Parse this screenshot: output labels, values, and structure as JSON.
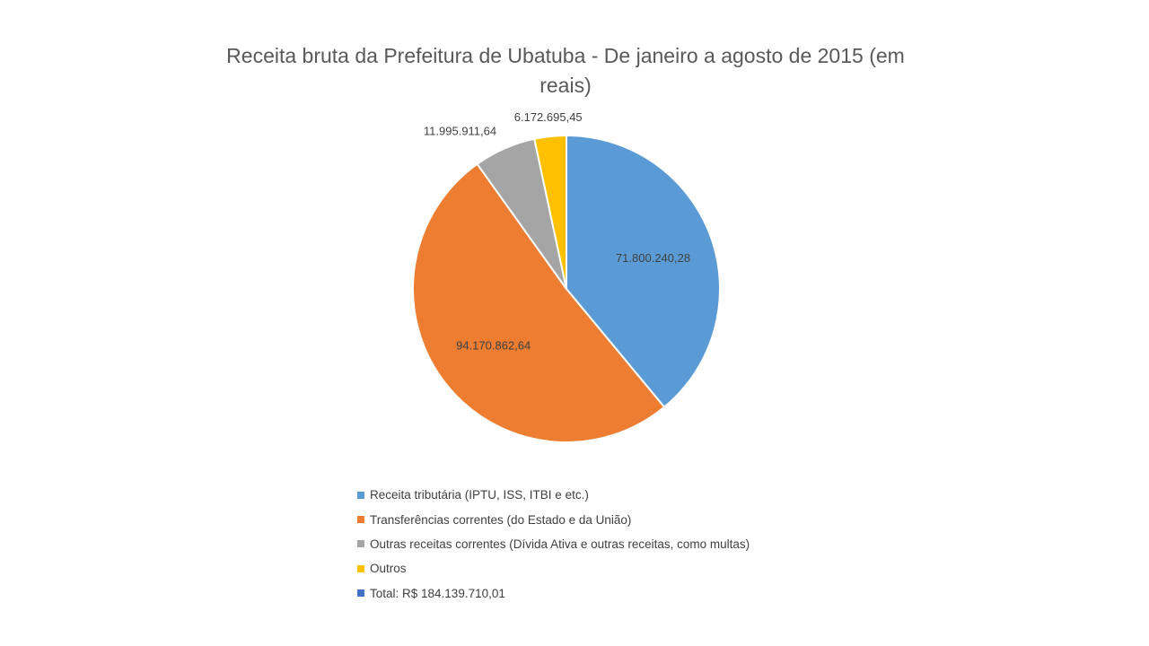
{
  "chart_data": {
    "type": "pie",
    "title": "Receita bruta da Prefeitura de Ubatuba - De janeiro a agosto de 2015 (em reais)",
    "slices": [
      {
        "name": "Receita tributária (IPTU, ISS, ITBI e etc.)",
        "value": 71800240.28,
        "label": "71.800.240,28",
        "color": "#5B9BD5"
      },
      {
        "name": "Transferências correntes (do Estado e da União)",
        "value": 94170862.64,
        "label": "94.170.862,64",
        "color": "#ED7D31"
      },
      {
        "name": "Outras receitas correntes (Dívida Ativa e outras receitas, como multas)",
        "value": 11995911.64,
        "label": "11.995.911,64",
        "color": "#A5A5A5"
      },
      {
        "name": "Outros",
        "value": 6172695.45,
        "label": "6.172.695,45",
        "color": "#FFC000"
      }
    ],
    "legend": [
      {
        "text": "Receita tributária (IPTU, ISS, ITBI e etc.)",
        "color": "#5B9BD5"
      },
      {
        "text": "Transferências correntes (do Estado e da União)",
        "color": "#ED7D31"
      },
      {
        "text": "Outras receitas correntes (Dívida Ativa e outras receitas, como multas)",
        "color": "#A5A5A5"
      },
      {
        "text": "Outros",
        "color": "#FFC000"
      },
      {
        "text": "Total: R$ 184.139.710,01",
        "color": "#4472C4"
      }
    ],
    "legend_position": "bottom"
  }
}
